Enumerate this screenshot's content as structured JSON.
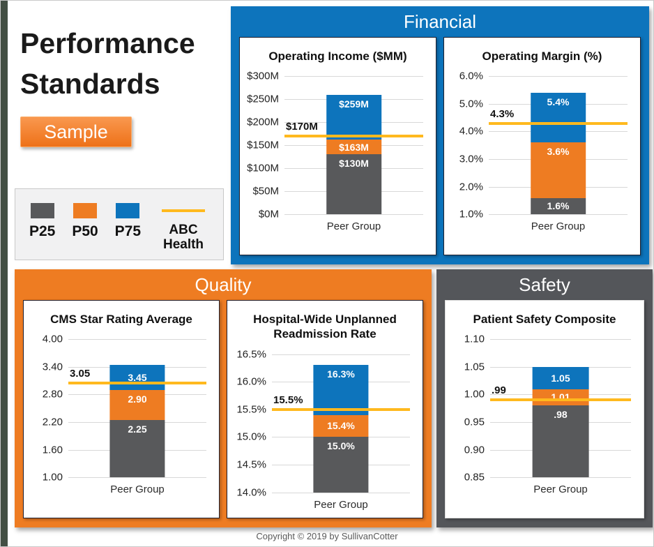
{
  "page": {
    "title": "Performance Standards",
    "sample_button": "Sample",
    "footer": "Copyright © 2019 by SullivanCotter"
  },
  "colors": {
    "p25_gray": "#58595B",
    "p50_orange": "#EE7C22",
    "p75_blue": "#0D74BC",
    "abc_gold": "#FFB91E",
    "financial_panel": "#0D74BC",
    "quality_panel": "#EE7C22",
    "safety_panel": "#54565A",
    "left_strip_green": "#434F44"
  },
  "legend": {
    "items": [
      {
        "label": "P25",
        "type": "square",
        "color": "#58595B"
      },
      {
        "label": "P50",
        "type": "square",
        "color": "#EE7C22"
      },
      {
        "label": "P75",
        "type": "square",
        "color": "#0D74BC"
      },
      {
        "label": "ABC Health",
        "type": "line",
        "color": "#FFB91E"
      }
    ]
  },
  "panels": [
    {
      "label": "Financial",
      "color": "#0D74BC",
      "chart_indexes": [
        0,
        1
      ]
    },
    {
      "label": "Quality",
      "color": "#EE7C22",
      "chart_indexes": [
        2,
        3
      ]
    },
    {
      "label": "Safety",
      "color": "#54565A",
      "chart_indexes": [
        4
      ]
    }
  ],
  "chart_data": [
    {
      "type": "bar",
      "stacked": true,
      "panel": "Financial",
      "title": "Operating Income ($MM)",
      "categories": [
        "Peer Group"
      ],
      "xlabel": "Peer Group",
      "ylim": [
        0,
        300
      ],
      "y_ticks": [
        "$300M",
        "$250M",
        "$200M",
        "$150M",
        "$100M",
        "$50M",
        "$0M"
      ],
      "grid": true,
      "note": "segment values are absolute percentile levels; bar stacks from axis min",
      "series": [
        {
          "name": "P25",
          "values": [
            130
          ],
          "label": "$130M",
          "color": "#58595B"
        },
        {
          "name": "P50",
          "values": [
            163
          ],
          "label": "$163M",
          "color": "#EE7C22"
        },
        {
          "name": "P75",
          "values": [
            259
          ],
          "label": "$259M",
          "color": "#0D74BC"
        },
        {
          "name": "ABC Health",
          "style": "line",
          "values": [
            170
          ],
          "label": "$170M",
          "color": "#FFB91E"
        }
      ]
    },
    {
      "type": "bar",
      "stacked": true,
      "panel": "Financial",
      "title": "Operating Margin (%)",
      "categories": [
        "Peer Group"
      ],
      "xlabel": "Peer Group",
      "ylim": [
        1.0,
        6.0
      ],
      "y_ticks": [
        "6.0%",
        "5.0%",
        "4.0%",
        "3.0%",
        "2.0%",
        "1.0%"
      ],
      "grid": true,
      "series": [
        {
          "name": "P25",
          "values": [
            1.6
          ],
          "label": "1.6%",
          "color": "#58595B"
        },
        {
          "name": "P50",
          "values": [
            3.6
          ],
          "label": "3.6%",
          "color": "#EE7C22"
        },
        {
          "name": "P75",
          "values": [
            5.4
          ],
          "label": "5.4%",
          "color": "#0D74BC"
        },
        {
          "name": "ABC Health",
          "style": "line",
          "values": [
            4.3
          ],
          "label": "4.3%",
          "color": "#FFB91E"
        }
      ]
    },
    {
      "type": "bar",
      "stacked": true,
      "panel": "Quality",
      "title": "CMS Star Rating Average",
      "categories": [
        "Peer Group"
      ],
      "xlabel": "Peer Group",
      "ylim": [
        1.0,
        4.0
      ],
      "y_ticks": [
        "4.00",
        "3.40",
        "2.80",
        "2.20",
        "1.60",
        "1.00"
      ],
      "grid": true,
      "series": [
        {
          "name": "P25",
          "values": [
            2.25
          ],
          "label": "2.25",
          "color": "#58595B"
        },
        {
          "name": "P50",
          "values": [
            2.9
          ],
          "label": "2.90",
          "color": "#EE7C22"
        },
        {
          "name": "P75",
          "values": [
            3.45
          ],
          "label": "3.45",
          "color": "#0D74BC"
        },
        {
          "name": "ABC Health",
          "style": "line",
          "values": [
            3.05
          ],
          "label": "3.05",
          "color": "#FFB91E"
        }
      ]
    },
    {
      "type": "bar",
      "stacked": true,
      "panel": "Quality",
      "title": "Hospital-Wide Unplanned Readmission Rate",
      "categories": [
        "Peer Group"
      ],
      "xlabel": "Peer Group",
      "ylim": [
        14.0,
        16.5
      ],
      "y_ticks": [
        "16.5%",
        "16.0%",
        "15.5%",
        "15.0%",
        "14.5%",
        "14.0%"
      ],
      "grid": true,
      "series": [
        {
          "name": "P25",
          "values": [
            15.0
          ],
          "label": "15.0%",
          "color": "#58595B"
        },
        {
          "name": "P50",
          "values": [
            15.4
          ],
          "label": "15.4%",
          "color": "#EE7C22"
        },
        {
          "name": "P75",
          "values": [
            16.3
          ],
          "label": "16.3%",
          "color": "#0D74BC"
        },
        {
          "name": "ABC Health",
          "style": "line",
          "values": [
            15.5
          ],
          "label": "15.5%",
          "color": "#FFB91E"
        }
      ]
    },
    {
      "type": "bar",
      "stacked": true,
      "panel": "Safety",
      "title": "Patient Safety Composite",
      "categories": [
        "Peer Group"
      ],
      "xlabel": "Peer Group",
      "ylim": [
        0.85,
        1.1
      ],
      "y_ticks": [
        "1.10",
        "1.05",
        "1.00",
        "0.95",
        "0.90",
        "0.85"
      ],
      "grid": true,
      "series": [
        {
          "name": "P25",
          "values": [
            0.98
          ],
          "label": ".98",
          "color": "#58595B"
        },
        {
          "name": "P50",
          "values": [
            1.01
          ],
          "label": "1.01",
          "color": "#EE7C22"
        },
        {
          "name": "P75",
          "values": [
            1.05
          ],
          "label": "1.05",
          "color": "#0D74BC"
        },
        {
          "name": "ABC Health",
          "style": "line",
          "values": [
            0.99
          ],
          "label": ".99",
          "color": "#FFB91E"
        }
      ]
    }
  ]
}
